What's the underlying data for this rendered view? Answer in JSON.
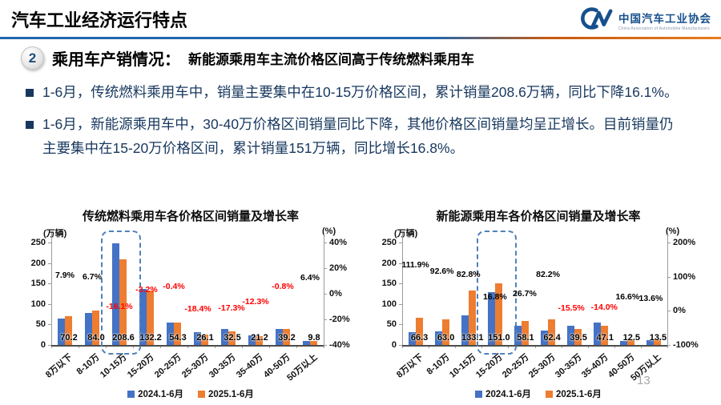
{
  "slide": {
    "header_title": "汽车工业经济运行特点",
    "logo": {
      "name": "中国汽车工业协会",
      "subtitle": "China Association of Automobile Manufacturers"
    },
    "section": {
      "number": "2",
      "title": "乘用车产销情况：",
      "highlight": "新能源乘用车主流价格区间高于传统燃料乘用车"
    },
    "bullets": [
      "1-6月，传统燃料乘用车中，销量主要集中在10-15万价格区间，累计销量208.6万辆，同比下降16.1%。",
      "1-6月，新能源乘用车中，30-40万价格区间销量同比下降，其他价格区间销量均呈正增长。目前销量仍主要集中在15-20万价格区间，累计销量151万辆，同比增长16.8%。"
    ],
    "page_number": "13"
  },
  "colors": {
    "bar_2024": "#4472C4",
    "bar_2025": "#ED7D31",
    "negative_label": "#FF0000",
    "positive_label": "#000000",
    "divider_blue": "#2166AC",
    "divider_orange": "#E97C1E",
    "body_text": "#17375E",
    "logo_blue": "#17508C",
    "highlight_border": "#4F81BD"
  },
  "chart_data": [
    {
      "type": "bar",
      "title": "传统燃料乘用车各价格区间销量及增长率",
      "unit_left": "(万辆)",
      "unit_right": "(%)",
      "value_axis": {
        "ticks": [
          0,
          50,
          100,
          150,
          200,
          250
        ],
        "max": 250
      },
      "pct_axis": {
        "ticks": [
          40,
          20,
          0,
          -20,
          -40
        ],
        "min": -40,
        "max": 40
      },
      "categories": [
        "8万以下",
        "8-10万",
        "10-15万",
        "15-20万",
        "20-25万",
        "25-30万",
        "30-35万",
        "35-40万",
        "40-50万",
        "50万以上"
      ],
      "series": [
        {
          "name": "2024.1-6月",
          "color": "#4472C4",
          "values": [
            65.1,
            78.7,
            248.6,
            136.6,
            54.5,
            32.0,
            39.3,
            24.2,
            39.5,
            9.2
          ]
        },
        {
          "name": "2025.1-6月",
          "color": "#ED7D31",
          "values": [
            70.2,
            84.0,
            208.6,
            132.2,
            54.3,
            26.1,
            32.5,
            21.2,
            39.2,
            9.8
          ]
        }
      ],
      "value_labels": [
        "70.2",
        "84.0",
        "208.6",
        "132.2",
        "54.3",
        "26.1",
        "32.5",
        "21.2",
        "39.2",
        "9.8"
      ],
      "growth_labels": [
        {
          "text": "7.9%",
          "value": 7.9
        },
        {
          "text": "6.7%",
          "value": 6.7
        },
        {
          "text": "-16.1%",
          "value": -16.1
        },
        {
          "text": "-3.2%",
          "value": -3.2
        },
        {
          "text": "-0.4%",
          "value": -0.4
        },
        {
          "text": "-18.4%",
          "value": -18.4,
          "dx": -4
        },
        {
          "text": "-17.3%",
          "value": -17.3,
          "dx": 4
        },
        {
          "text": "-12.3%",
          "value": -12.3
        },
        {
          "text": "-0.8%",
          "value": -0.8
        },
        {
          "text": "6.4%",
          "value": 6.4
        }
      ],
      "highlight_index": 2,
      "legend_position": "bottom"
    },
    {
      "type": "bar",
      "title": "新能源乘用车各价格区间销量及增长率",
      "unit_left": "(万辆)",
      "unit_right": "(%)",
      "value_axis": {
        "ticks": [
          0,
          50,
          100,
          150,
          200,
          250
        ],
        "max": 250
      },
      "pct_axis": {
        "ticks": [
          200,
          100,
          0,
          -100
        ],
        "min": -100,
        "max": 200
      },
      "categories": [
        "8万以下",
        "8-10万",
        "10-15万",
        "15-20万",
        "20-25万",
        "25-30万",
        "30-35万",
        "35-40万",
        "40-50万",
        "50万以上"
      ],
      "series": [
        {
          "name": "2024.1-6月",
          "color": "#4472C4",
          "values": [
            31.3,
            32.7,
            72.8,
            129.3,
            45.9,
            34.2,
            46.7,
            54.8,
            10.7,
            11.9
          ]
        },
        {
          "name": "2025.1-6月",
          "color": "#ED7D31",
          "values": [
            66.3,
            63.0,
            133.1,
            151.0,
            58.1,
            62.4,
            39.5,
            47.1,
            12.5,
            13.5
          ]
        }
      ],
      "value_labels": [
        "66.3",
        "63.0",
        "133.1",
        "151.0",
        "58.1",
        "62.4",
        "39.5",
        "47.1",
        "12.5",
        "13.5"
      ],
      "growth_labels": [
        {
          "text": "111.9%",
          "value": 111.9
        },
        {
          "text": "92.6%",
          "value": 92.6
        },
        {
          "text": "82.8%",
          "value": 82.8
        },
        {
          "text": "16.8%",
          "value": 16.8
        },
        {
          "text": "26.7%",
          "value": 26.7,
          "dx": 4
        },
        {
          "text": "82.2%",
          "value": 82.2
        },
        {
          "text": "-15.5%",
          "value": -15.5,
          "dx": -4
        },
        {
          "text": "-14.0%",
          "value": -14.0,
          "dx": 4
        },
        {
          "text": "16.6%",
          "value": 16.6
        },
        {
          "text": "13.6%",
          "value": 13.6,
          "dx": -4
        }
      ],
      "highlight_index": 3,
      "legend_position": "bottom"
    }
  ]
}
